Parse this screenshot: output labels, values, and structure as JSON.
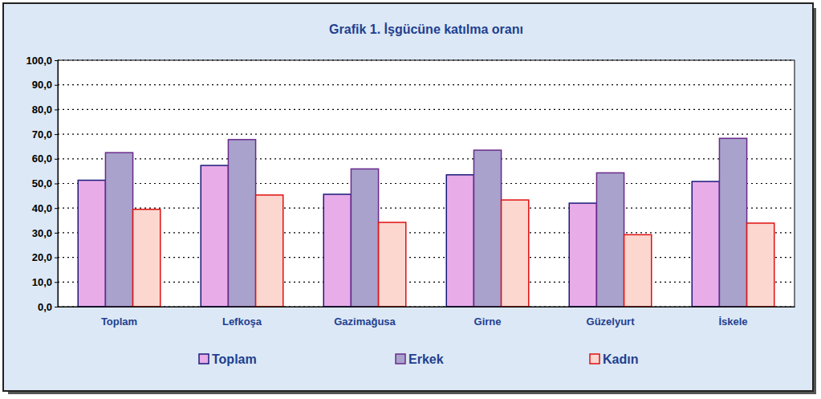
{
  "chart_data": {
    "type": "bar",
    "title": "Grafik 1. İşgücüne katılma oranı",
    "categories": [
      "Toplam",
      "Lefkoşa",
      "Gazimağusa",
      "Girne",
      "Güzelyurt",
      "İskele"
    ],
    "series": [
      {
        "name": "Toplam",
        "color": "#e8ace8",
        "values": [
          51.3,
          57.3,
          45.6,
          53.5,
          42.0,
          50.8
        ]
      },
      {
        "name": "Erkek",
        "color": "#a8a2cc",
        "values": [
          62.5,
          67.8,
          55.9,
          63.5,
          54.3,
          68.3
        ]
      },
      {
        "name": "Kadın",
        "color": "#fbd7cf",
        "values": [
          39.5,
          45.3,
          34.2,
          43.3,
          29.2,
          33.9
        ]
      }
    ],
    "ylim": [
      0,
      100
    ],
    "yticks": [
      {
        "value": 0,
        "label": "0,0"
      },
      {
        "value": 10,
        "label": "10,0"
      },
      {
        "value": 20,
        "label": "20,0"
      },
      {
        "value": 30,
        "label": "30,0"
      },
      {
        "value": 40,
        "label": "40,0"
      },
      {
        "value": 50,
        "label": "50,0"
      },
      {
        "value": 60,
        "label": "60,0"
      },
      {
        "value": 70,
        "label": "70,0"
      },
      {
        "value": 80,
        "label": "80,0"
      },
      {
        "value": 90,
        "label": "90,0"
      },
      {
        "value": 100,
        "label": "100,0"
      }
    ],
    "grid": true,
    "legend": "bottom"
  }
}
